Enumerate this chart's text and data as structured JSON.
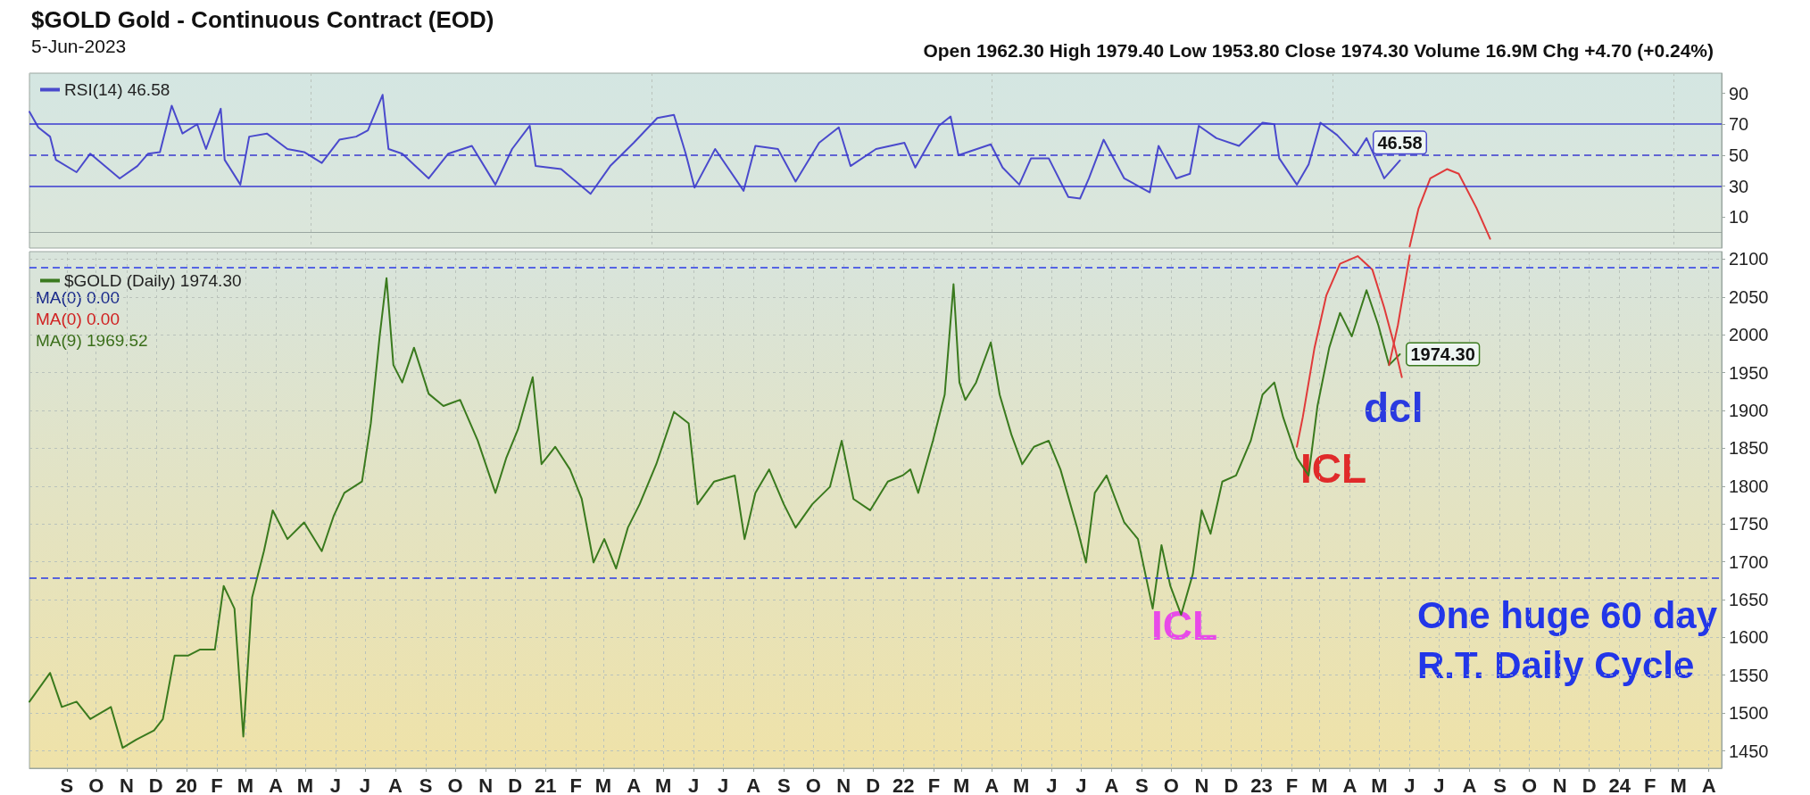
{
  "chart_data": [
    {
      "type": "line",
      "title": "$GOLD Gold - Continuous Contract (EOD)",
      "subtitle": "5-Jun-2023",
      "annotations": [
        "Open 1962.30 High 1979.40 Low 1953.80 Close 1974.30 Volume 16.9M Chg +4.70 (+0.24%)"
      ],
      "xlim": [
        "2019-08-08",
        "2024-04-28"
      ],
      "ylim": [
        -10,
        103
      ],
      "yticks": [
        10,
        30,
        50,
        70,
        90
      ],
      "tick_labels": "y",
      "grid": "x",
      "legend": "top left",
      "marker": "none",
      "ref_lines": [
        {
          "axis": "y",
          "value": 70,
          "line_style": "solid",
          "color": "#3a3ad0"
        },
        {
          "axis": "y",
          "value": 50,
          "line_style": "dashed",
          "color": "#3a3ad0"
        },
        {
          "axis": "y",
          "value": 30,
          "line_style": "solid",
          "color": "#3a3ad0"
        }
      ],
      "series": [
        {
          "name": "RSI(14) 46.58",
          "color": "#4a4acc",
          "x": [
            "2019-08-08",
            "2019-08-17",
            "2019-08-29",
            "2019-09-04",
            "2019-09-25",
            "2019-10-09",
            "2019-11-08",
            "2019-11-26",
            "2019-12-07",
            "2019-12-19",
            "2019-12-31",
            "2020-01-11",
            "2020-01-26",
            "2020-02-04",
            "2020-02-19",
            "2020-02-23",
            "2020-03-10",
            "2020-03-19",
            "2020-04-06",
            "2020-04-27",
            "2020-05-14",
            "2020-06-01",
            "2020-06-19",
            "2020-07-06",
            "2020-07-18",
            "2020-08-02",
            "2020-08-08",
            "2020-08-22",
            "2020-09-18",
            "2020-10-08",
            "2020-11-01",
            "2020-11-25",
            "2020-12-12",
            "2020-12-30",
            "2021-01-05",
            "2021-01-31",
            "2021-03-02",
            "2021-03-22",
            "2021-04-15",
            "2021-05-09",
            "2021-05-26",
            "2021-06-07",
            "2021-06-16",
            "2021-07-07",
            "2021-08-05",
            "2021-08-17",
            "2021-09-09",
            "2021-09-27",
            "2021-10-21",
            "2021-11-10",
            "2021-11-22",
            "2021-12-18",
            "2022-01-16",
            "2022-01-27",
            "2022-02-20",
            "2022-03-04",
            "2022-03-12",
            "2022-04-14",
            "2022-04-26",
            "2022-05-13",
            "2022-05-25",
            "2022-06-12",
            "2022-07-02",
            "2022-07-14",
            "2022-07-23",
            "2022-08-07",
            "2022-08-28",
            "2022-09-23",
            "2022-10-02",
            "2022-10-20",
            "2022-11-03",
            "2022-11-12",
            "2022-11-30",
            "2022-12-23",
            "2023-01-16",
            "2023-01-28",
            "2023-02-02",
            "2023-02-20",
            "2023-03-04",
            "2023-03-16",
            "2023-04-02",
            "2023-04-21",
            "2023-05-02",
            "2023-05-20",
            "2023-06-05"
          ],
          "values": [
            78,
            68,
            62,
            47,
            39,
            51,
            35,
            43,
            51,
            52,
            82,
            64,
            70,
            54,
            80,
            47,
            31,
            62,
            64,
            54,
            52,
            45,
            60,
            62,
            66,
            89,
            54,
            51,
            35,
            51,
            56,
            31,
            54,
            69,
            43,
            41,
            25,
            43,
            58,
            74,
            76,
            51,
            29,
            54,
            27,
            56,
            54,
            33,
            58,
            68,
            43,
            54,
            58,
            42,
            69,
            75,
            50,
            57,
            42,
            31,
            48,
            48,
            23,
            22,
            35,
            60,
            35,
            26,
            56,
            35,
            38,
            69,
            61,
            56,
            71,
            70,
            48,
            31,
            44,
            71,
            63,
            50,
            61,
            35,
            46.58
          ],
          "value_labels": [
            null,
            null,
            null,
            null,
            null,
            null,
            null,
            null,
            null,
            null,
            null,
            null,
            null,
            null,
            null,
            null,
            null,
            null,
            null,
            null,
            null,
            null,
            null,
            null,
            null,
            null,
            null,
            null,
            null,
            null,
            null,
            null,
            null,
            null,
            null,
            null,
            null,
            null,
            null,
            null,
            null,
            null,
            null,
            null,
            null,
            null,
            null,
            null,
            null,
            null,
            null,
            null,
            null,
            null,
            null,
            null,
            null,
            null,
            null,
            null,
            null,
            null,
            null,
            null,
            null,
            null,
            null,
            null,
            null,
            null,
            null,
            null,
            null,
            null,
            null,
            null,
            null,
            null,
            null,
            null,
            null,
            null,
            null,
            null,
            "46.58"
          ]
        },
        {
          "color": "#e03a3a",
          "x": [
            "2023-06-15",
            "2023-06-24",
            "2023-07-06",
            "2023-07-23",
            "2023-08-04",
            "2023-08-22",
            "2023-09-05"
          ],
          "values": [
            -9,
            15.5,
            35,
            41,
            38,
            16,
            -4
          ]
        }
      ]
    },
    {
      "type": "line",
      "annotations": [
        "MA(0) 0.00",
        "MA(0) 0.00",
        "MA(9) 1969.52",
        "dcl",
        "ICL",
        "ICL",
        "One huge 60 day\nR.T. Daily Cycle"
      ],
      "xlim": [
        "2019-08-08",
        "2024-04-28"
      ],
      "xticks": [
        {
          "value": "2019-09-15",
          "label": "S"
        },
        {
          "value": "2019-10-15",
          "label": "O"
        },
        {
          "value": "2019-11-15",
          "label": "N"
        },
        {
          "value": "2019-12-15",
          "label": "D"
        },
        {
          "value": "2020-01-15",
          "label": "20"
        },
        {
          "value": "2020-02-15",
          "label": "F"
        },
        {
          "value": "2020-03-15",
          "label": "M"
        },
        {
          "value": "2020-04-15",
          "label": "A"
        },
        {
          "value": "2020-05-15",
          "label": "M"
        },
        {
          "value": "2020-06-15",
          "label": "J"
        },
        {
          "value": "2020-07-15",
          "label": "J"
        },
        {
          "value": "2020-08-15",
          "label": "A"
        },
        {
          "value": "2020-09-15",
          "label": "S"
        },
        {
          "value": "2020-10-15",
          "label": "O"
        },
        {
          "value": "2020-11-15",
          "label": "N"
        },
        {
          "value": "2020-12-15",
          "label": "D"
        },
        {
          "value": "2021-01-15",
          "label": "21"
        },
        {
          "value": "2021-02-15",
          "label": "F"
        },
        {
          "value": "2021-03-15",
          "label": "M"
        },
        {
          "value": "2021-04-15",
          "label": "A"
        },
        {
          "value": "2021-05-15",
          "label": "M"
        },
        {
          "value": "2021-06-15",
          "label": "J"
        },
        {
          "value": "2021-07-15",
          "label": "J"
        },
        {
          "value": "2021-08-15",
          "label": "A"
        },
        {
          "value": "2021-09-15",
          "label": "S"
        },
        {
          "value": "2021-10-15",
          "label": "O"
        },
        {
          "value": "2021-11-15",
          "label": "N"
        },
        {
          "value": "2021-12-15",
          "label": "D"
        },
        {
          "value": "2022-01-15",
          "label": "22"
        },
        {
          "value": "2022-02-15",
          "label": "F"
        },
        {
          "value": "2022-03-15",
          "label": "M"
        },
        {
          "value": "2022-04-15",
          "label": "A"
        },
        {
          "value": "2022-05-15",
          "label": "M"
        },
        {
          "value": "2022-06-15",
          "label": "J"
        },
        {
          "value": "2022-07-15",
          "label": "J"
        },
        {
          "value": "2022-08-15",
          "label": "A"
        },
        {
          "value": "2022-09-15",
          "label": "S"
        },
        {
          "value": "2022-10-15",
          "label": "O"
        },
        {
          "value": "2022-11-15",
          "label": "N"
        },
        {
          "value": "2022-12-15",
          "label": "D"
        },
        {
          "value": "2023-01-15",
          "label": "23"
        },
        {
          "value": "2023-02-15",
          "label": "F"
        },
        {
          "value": "2023-03-15",
          "label": "M"
        },
        {
          "value": "2023-04-15",
          "label": "A"
        },
        {
          "value": "2023-05-15",
          "label": "M"
        },
        {
          "value": "2023-06-15",
          "label": "J"
        },
        {
          "value": "2023-07-15",
          "label": "J"
        },
        {
          "value": "2023-08-15",
          "label": "A"
        },
        {
          "value": "2023-09-15",
          "label": "S"
        },
        {
          "value": "2023-10-15",
          "label": "O"
        },
        {
          "value": "2023-11-15",
          "label": "N"
        },
        {
          "value": "2023-12-15",
          "label": "D"
        },
        {
          "value": "2024-01-15",
          "label": "24"
        },
        {
          "value": "2024-02-15",
          "label": "F"
        },
        {
          "value": "2024-03-15",
          "label": "M"
        },
        {
          "value": "2024-04-15",
          "label": "A"
        }
      ],
      "ylim": [
        1427,
        2110
      ],
      "yticks": [
        1450,
        1500,
        1550,
        1600,
        1650,
        1700,
        1750,
        1800,
        1850,
        1900,
        1950,
        2000,
        2050,
        2100
      ],
      "grid": true,
      "legend": "top left",
      "marker": "none",
      "ref_lines": [
        {
          "axis": "y",
          "value": 2089,
          "line_style": "dashed",
          "color": "#2a3ae8"
        },
        {
          "axis": "y",
          "value": 1678,
          "line_style": "dashed",
          "color": "#2a3ae8"
        }
      ],
      "series": [
        {
          "name": "$GOLD (Daily) 1974.30",
          "color": "#3a7a1e",
          "x": [
            "2019-08-08",
            "2019-08-29",
            "2019-09-10",
            "2019-09-25",
            "2019-10-09",
            "2019-10-30",
            "2019-11-11",
            "2019-11-25",
            "2019-12-13",
            "2019-12-22",
            "2020-01-03",
            "2020-01-17",
            "2020-01-29",
            "2020-02-13",
            "2020-02-22",
            "2020-03-04",
            "2020-03-13",
            "2020-03-22",
            "2020-04-03",
            "2020-04-12",
            "2020-04-27",
            "2020-05-14",
            "2020-06-01",
            "2020-06-13",
            "2020-06-24",
            "2020-07-12",
            "2020-07-21",
            "2020-07-30",
            "2020-08-06",
            "2020-08-13",
            "2020-08-22",
            "2020-09-03",
            "2020-09-18",
            "2020-10-03",
            "2020-10-20",
            "2020-11-07",
            "2020-11-25",
            "2020-12-06",
            "2020-12-18",
            "2021-01-02",
            "2021-01-11",
            "2021-01-25",
            "2021-02-09",
            "2021-02-21",
            "2021-03-05",
            "2021-03-16",
            "2021-03-28",
            "2021-04-09",
            "2021-04-21",
            "2021-05-08",
            "2021-05-26",
            "2021-06-10",
            "2021-06-19",
            "2021-07-06",
            "2021-07-27",
            "2021-08-06",
            "2021-08-17",
            "2021-08-31",
            "2021-09-15",
            "2021-09-27",
            "2021-10-14",
            "2021-11-01",
            "2021-11-13",
            "2021-11-25",
            "2021-12-12",
            "2021-12-30",
            "2022-01-14",
            "2022-01-22",
            "2022-01-30",
            "2022-02-14",
            "2022-02-26",
            "2022-03-07",
            "2022-03-13",
            "2022-03-19",
            "2022-03-30",
            "2022-04-14",
            "2022-04-23",
            "2022-05-05",
            "2022-05-16",
            "2022-05-28",
            "2022-06-12",
            "2022-06-24",
            "2022-07-11",
            "2022-07-20",
            "2022-07-29",
            "2022-08-10",
            "2022-08-28",
            "2022-09-11",
            "2022-09-26",
            "2022-10-05",
            "2022-10-14",
            "2022-10-25",
            "2022-11-06",
            "2022-11-15",
            "2022-11-24",
            "2022-12-06",
            "2022-12-20",
            "2023-01-04",
            "2023-01-16",
            "2023-01-28",
            "2023-02-06",
            "2023-02-20",
            "2023-03-04",
            "2023-03-13",
            "2023-03-25",
            "2023-04-05",
            "2023-04-17",
            "2023-05-02",
            "2023-05-14",
            "2023-05-25",
            "2023-06-05"
          ],
          "values": [
            1515,
            1553,
            1508,
            1515,
            1492,
            1508,
            1454,
            1465,
            1477,
            1492,
            1576,
            1576,
            1584,
            1584,
            1668,
            1638,
            1469,
            1653,
            1714,
            1768,
            1730,
            1752,
            1714,
            1760,
            1791,
            1806,
            1883,
            1998,
            2075,
            1960,
            1937,
            1983,
            1922,
            1906,
            1914,
            1860,
            1791,
            1837,
            1875,
            1944,
            1829,
            1852,
            1822,
            1783,
            1699,
            1730,
            1691,
            1745,
            1776,
            1829,
            1898,
            1883,
            1776,
            1806,
            1814,
            1730,
            1791,
            1822,
            1776,
            1745,
            1776,
            1799,
            1860,
            1783,
            1768,
            1806,
            1814,
            1822,
            1791,
            1860,
            1921,
            2067,
            1937,
            1914,
            1937,
            1990,
            1921,
            1868,
            1829,
            1852,
            1860,
            1822,
            1745,
            1699,
            1791,
            1814,
            1752,
            1730,
            1638,
            1722,
            1668,
            1630,
            1684,
            1768,
            1737,
            1806,
            1814,
            1860,
            1921,
            1937,
            1891,
            1837,
            1814,
            1906,
            1983,
            2029,
            1998,
            2059,
            2013,
            1960,
            1974.3
          ],
          "value_labels": [
            null,
            null,
            null,
            null,
            null,
            null,
            null,
            null,
            null,
            null,
            null,
            null,
            null,
            null,
            null,
            null,
            null,
            null,
            null,
            null,
            null,
            null,
            null,
            null,
            null,
            null,
            null,
            null,
            null,
            null,
            null,
            null,
            null,
            null,
            null,
            null,
            null,
            null,
            null,
            null,
            null,
            null,
            null,
            null,
            null,
            null,
            null,
            null,
            null,
            null,
            null,
            null,
            null,
            null,
            null,
            null,
            null,
            null,
            null,
            null,
            null,
            null,
            null,
            null,
            null,
            null,
            null,
            null,
            null,
            null,
            null,
            null,
            null,
            null,
            null,
            null,
            null,
            null,
            null,
            null,
            null,
            null,
            null,
            null,
            null,
            null,
            null,
            null,
            null,
            null,
            null,
            null,
            null,
            null,
            null,
            null,
            null,
            null,
            null,
            null,
            null,
            null,
            null,
            null,
            null,
            null,
            null,
            null,
            null,
            null,
            "1974.30"
          ]
        },
        {
          "color": "#e03a3a",
          "x": [
            "2023-02-20",
            "2023-02-26",
            "2023-03-10",
            "2023-03-22",
            "2023-04-05",
            "2023-04-23",
            "2023-05-08",
            "2023-05-20",
            "2023-05-31",
            "2023-06-07"
          ],
          "values": [
            1852,
            1891,
            1983,
            2052,
            2094,
            2104,
            2086,
            2036,
            1983,
            1944
          ]
        },
        {
          "color": "#e03a3a",
          "x": [
            "2023-05-25",
            "2023-06-03",
            "2023-06-12",
            "2023-06-15"
          ],
          "values": [
            1960,
            2013,
            2082,
            2105
          ]
        }
      ]
    }
  ]
}
